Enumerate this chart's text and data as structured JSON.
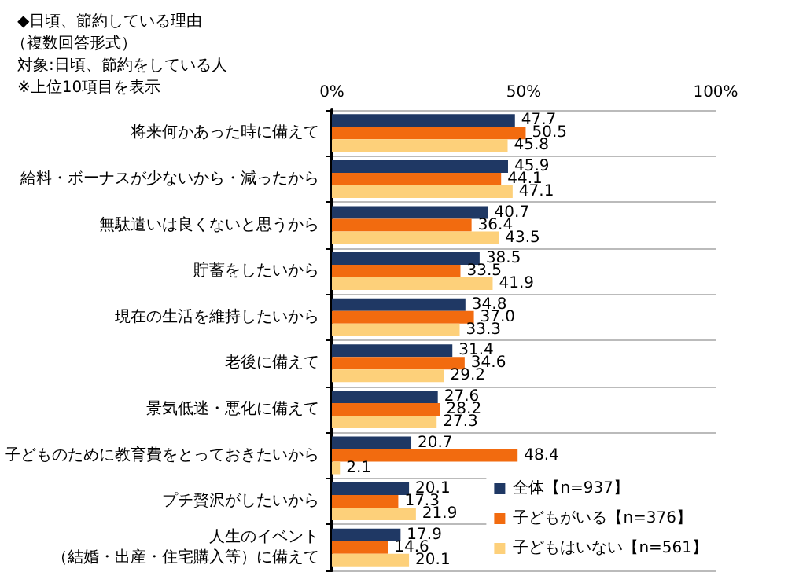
{
  "chart_data": {
    "type": "bar",
    "orientation": "horizontal",
    "title": "◆日頃、節約している理由",
    "subtitle": "（複数回答形式）",
    "annotations": [
      "対象:日頃、節約をしている人",
      "※上位10項目を表示"
    ],
    "categories": [
      "将来何かあった時に備えて",
      "給料・ボーナスが少ないから・減ったから",
      "無駄遣いは良くないと思うから",
      "貯蓄をしたいから",
      "現在の生活を維持したいから",
      "老後に備えて",
      "景気低迷・悪化に備えて",
      "子どものために教育費をとっておきたいから",
      "プチ贅沢がしたいから",
      "人生のイベント（結婚・出産・住宅購入等）に備えて"
    ],
    "series": [
      {
        "name": "全体【n=937】",
        "color": "#1f3864",
        "values": [
          47.7,
          45.9,
          40.7,
          38.5,
          34.8,
          31.4,
          27.6,
          20.7,
          20.1,
          17.9
        ]
      },
      {
        "name": "子どもがいる【n=376】",
        "color": "#f26b0f",
        "values": [
          50.5,
          44.1,
          36.4,
          33.5,
          37.0,
          34.6,
          28.2,
          48.4,
          17.3,
          14.6
        ],
        "value_labels": [
          "50.5",
          "44.1",
          "36.4",
          "33.5",
          "37.0",
          "34.6",
          "28.2",
          "48.4",
          "17.3",
          "14.6"
        ]
      },
      {
        "name": "子どもはいない【n=561】",
        "color": "#fdd07a",
        "values": [
          45.8,
          47.1,
          43.5,
          41.9,
          33.3,
          29.2,
          27.3,
          2.1,
          21.9,
          20.1
        ]
      }
    ],
    "xlim": [
      0,
      100
    ],
    "xticks": [
      {
        "value": 0,
        "label": "0%"
      },
      {
        "value": 50,
        "label": "50%"
      },
      {
        "value": 100,
        "label": "100%"
      }
    ],
    "data_labels": true,
    "grid": "y",
    "legend": "bottom right"
  }
}
